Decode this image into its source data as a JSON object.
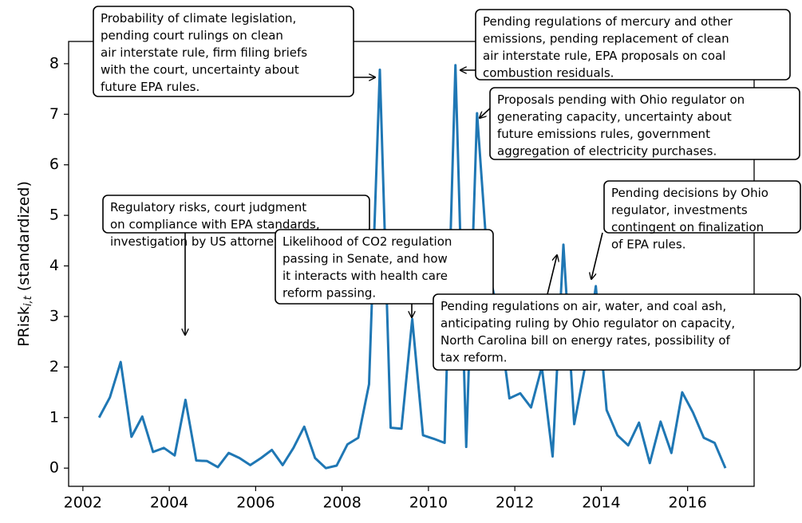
{
  "chart_data": {
    "type": "line",
    "ylabel": {
      "main": "PRisk",
      "sub": "i,t",
      "rest": " (standardized)"
    },
    "x": [
      2002.375,
      2002.625,
      2002.875,
      2003.125,
      2003.375,
      2003.625,
      2003.875,
      2004.125,
      2004.375,
      2004.625,
      2004.875,
      2005.125,
      2005.375,
      2005.625,
      2005.875,
      2006.125,
      2006.375,
      2006.625,
      2006.875,
      2007.125,
      2007.375,
      2007.625,
      2007.875,
      2008.125,
      2008.375,
      2008.625,
      2008.875,
      2009.125,
      2009.375,
      2009.625,
      2009.875,
      2010.125,
      2010.375,
      2010.625,
      2010.875,
      2011.125,
      2011.375,
      2011.625,
      2011.875,
      2012.125,
      2012.375,
      2012.625,
      2012.875,
      2013.125,
      2013.375,
      2013.625,
      2013.875,
      2014.125,
      2014.375,
      2014.625,
      2014.875,
      2015.125,
      2015.375,
      2015.625,
      2015.875,
      2016.125,
      2016.375,
      2016.625,
      2016.875
    ],
    "series": [
      {
        "name": "PRisk",
        "color": "#1f77b4",
        "values": [
          1.0,
          1.4,
          2.1,
          0.62,
          1.02,
          0.32,
          0.4,
          0.25,
          1.35,
          0.15,
          0.14,
          0.02,
          0.3,
          0.2,
          0.06,
          0.2,
          0.36,
          0.06,
          0.4,
          0.82,
          0.2,
          0.0,
          0.05,
          0.47,
          0.6,
          1.66,
          7.88,
          0.8,
          0.78,
          2.95,
          0.65,
          0.58,
          0.5,
          7.97,
          0.42,
          7.02,
          4.0,
          3.0,
          1.38,
          1.48,
          1.2,
          2.0,
          0.23,
          4.42,
          0.87,
          2.0,
          3.6,
          1.15,
          0.65,
          0.45,
          0.9,
          0.1,
          0.92,
          0.3,
          1.5,
          1.1,
          0.6,
          0.5,
          0.0
        ]
      }
    ],
    "xlim": [
      2001.67,
      2017.54
    ],
    "ylim": [
      -0.36,
      8.44
    ],
    "xticks": [
      2002,
      2004,
      2006,
      2008,
      2010,
      2012,
      2014,
      2016
    ],
    "yticks": [
      0,
      1,
      2,
      3,
      4,
      5,
      6,
      7,
      8
    ],
    "annotations": [
      {
        "lines": [
          "Probability of climate legislation,",
          "pending court rulings on clean",
          "air interstate rule, firm filing briefs",
          "with the court, uncertainty about",
          "future EPA rules."
        ]
      },
      {
        "lines": [
          "Pending regulations of mercury and other",
          "emissions, pending replacement of clean",
          "air interstate rule, EPA proposals on coal",
          "combustion residuals."
        ]
      },
      {
        "lines": [
          "Proposals pending with Ohio regulator on",
          "generating capacity, uncertainty about",
          "future emissions rules, government",
          "aggregation of electricity purchases."
        ]
      },
      {
        "lines": [
          "Pending decisions by Ohio",
          "regulator, investments",
          "contingent on finalization",
          "of EPA rules."
        ]
      },
      {
        "lines": [
          "Regulatory risks, court judgment",
          "on compliance with EPA standards,",
          "investigation by US attorney."
        ]
      },
      {
        "lines": [
          "Likelihood of CO2 regulation",
          "passing in Senate, and how",
          "it interacts with health care",
          "reform passing."
        ]
      },
      {
        "lines": [
          "Pending regulations on air, water, and coal ash,",
          "anticipating ruling by Ohio regulator on capacity,",
          "North Carolina bill on energy rates, possibility of",
          "tax reform."
        ]
      }
    ]
  }
}
